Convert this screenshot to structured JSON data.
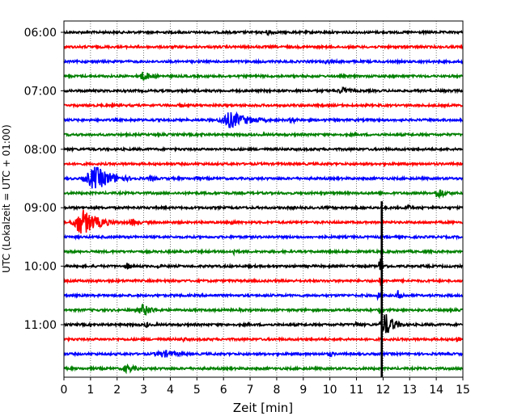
{
  "chart_data": {
    "type": "line",
    "subtype": "helicorder",
    "title": "",
    "xlabel": "Zeit  [min]",
    "ylabel": "UTC (Lokalzeit = UTC + 01:00)",
    "xlim": [
      0,
      15
    ],
    "x_ticks": [
      "0",
      "1",
      "2",
      "3",
      "4",
      "5",
      "6",
      "7",
      "8",
      "9",
      "10",
      "11",
      "12",
      "13",
      "14",
      "15"
    ],
    "y_tick_labels": [
      "06:00",
      "07:00",
      "08:00",
      "09:00",
      "10:00",
      "11:00"
    ],
    "grid": "vertical-dotted",
    "line_colors": [
      "#000000",
      "#ff0000",
      "#0000ff",
      "#008000"
    ],
    "traces": [
      {
        "start": "06:00",
        "color": "#000000",
        "events": [
          {
            "t": 7.7,
            "amp": 0.25,
            "dur": 0.9
          }
        ]
      },
      {
        "start": "06:15",
        "color": "#ff0000",
        "events": []
      },
      {
        "start": "06:30",
        "color": "#0000ff",
        "events": [
          {
            "t": 9.9,
            "amp": 0.25,
            "dur": 0.6
          }
        ]
      },
      {
        "start": "06:45",
        "color": "#008000",
        "events": [
          {
            "t": 3.0,
            "amp": 0.4,
            "dur": 1.2
          }
        ]
      },
      {
        "start": "07:00",
        "color": "#000000",
        "events": [
          {
            "t": 10.5,
            "amp": 0.3,
            "dur": 1.2
          }
        ]
      },
      {
        "start": "07:15",
        "color": "#ff0000",
        "events": [
          {
            "t": 4.4,
            "amp": 0.2,
            "dur": 0.6
          }
        ]
      },
      {
        "start": "07:30",
        "color": "#0000ff",
        "events": [
          {
            "t": 6.3,
            "amp": 0.7,
            "dur": 2.2
          },
          {
            "t": 8.6,
            "amp": 0.25,
            "dur": 0.8
          }
        ]
      },
      {
        "start": "07:45",
        "color": "#008000",
        "events": [
          {
            "t": 5.2,
            "amp": 0.2,
            "dur": 0.4
          }
        ]
      },
      {
        "start": "08:00",
        "color": "#000000",
        "events": []
      },
      {
        "start": "08:15",
        "color": "#ff0000",
        "events": []
      },
      {
        "start": "08:30",
        "color": "#0000ff",
        "events": [
          {
            "t": 1.2,
            "amp": 1.0,
            "dur": 2.0
          },
          {
            "t": 3.3,
            "amp": 0.25,
            "dur": 0.8
          },
          {
            "t": 5.0,
            "amp": 0.2,
            "dur": 0.8
          }
        ]
      },
      {
        "start": "08:45",
        "color": "#008000",
        "events": [
          {
            "t": 14.1,
            "amp": 0.45,
            "dur": 1.0
          }
        ]
      },
      {
        "start": "09:00",
        "color": "#000000",
        "events": [
          {
            "t": 12.9,
            "amp": 0.3,
            "dur": 0.6
          }
        ]
      },
      {
        "start": "09:15",
        "color": "#ff0000",
        "events": [
          {
            "t": 0.7,
            "amp": 1.1,
            "dur": 1.8
          },
          {
            "t": 2.6,
            "amp": 0.3,
            "dur": 1.0
          },
          {
            "t": 6.3,
            "amp": 0.3,
            "dur": 0.5
          }
        ]
      },
      {
        "start": "09:30",
        "color": "#0000ff",
        "events": []
      },
      {
        "start": "09:45",
        "color": "#008000",
        "events": [
          {
            "t": 6.4,
            "amp": 0.3,
            "dur": 0.4
          }
        ]
      },
      {
        "start": "10:00",
        "color": "#000000",
        "events": [
          {
            "t": 2.4,
            "amp": 0.3,
            "dur": 0.6
          },
          {
            "t": 3.5,
            "amp": 0.25,
            "dur": 0.3
          },
          {
            "t": 11.9,
            "amp": 0.8,
            "dur": 0.4
          }
        ]
      },
      {
        "start": "10:15",
        "color": "#ff0000",
        "events": [
          {
            "t": 11.9,
            "amp": 0.5,
            "dur": 0.3
          }
        ]
      },
      {
        "start": "10:30",
        "color": "#0000ff",
        "events": [
          {
            "t": 11.8,
            "amp": 0.3,
            "dur": 0.4
          },
          {
            "t": 12.6,
            "amp": 0.6,
            "dur": 0.4
          }
        ]
      },
      {
        "start": "10:45",
        "color": "#008000",
        "events": [
          {
            "t": 3.0,
            "amp": 0.5,
            "dur": 1.2
          },
          {
            "t": 11.9,
            "amp": 0.4,
            "dur": 0.4
          }
        ]
      },
      {
        "start": "11:00",
        "color": "#000000",
        "events": [
          {
            "t": 3.1,
            "amp": 0.3,
            "dur": 0.3
          },
          {
            "t": 11.0,
            "amp": 0.25,
            "dur": 0.6
          },
          {
            "t": 12.1,
            "amp": 1.0,
            "dur": 1.0
          }
        ]
      },
      {
        "start": "11:15",
        "color": "#ff0000",
        "events": [
          {
            "t": 4.5,
            "amp": 0.2,
            "dur": 0.6
          },
          {
            "t": 14.8,
            "amp": 0.4,
            "dur": 0.3
          }
        ]
      },
      {
        "start": "11:30",
        "color": "#0000ff",
        "events": [
          {
            "t": 3.8,
            "amp": 0.3,
            "dur": 2.5
          },
          {
            "t": 10.0,
            "amp": 0.25,
            "dur": 0.6
          }
        ]
      },
      {
        "start": "11:45",
        "color": "#008000",
        "events": [
          {
            "t": 2.4,
            "amp": 0.35,
            "dur": 1.2
          }
        ]
      }
    ],
    "spike": {
      "t": 11.95,
      "from_trace": 12,
      "to_trace": 23
    }
  }
}
